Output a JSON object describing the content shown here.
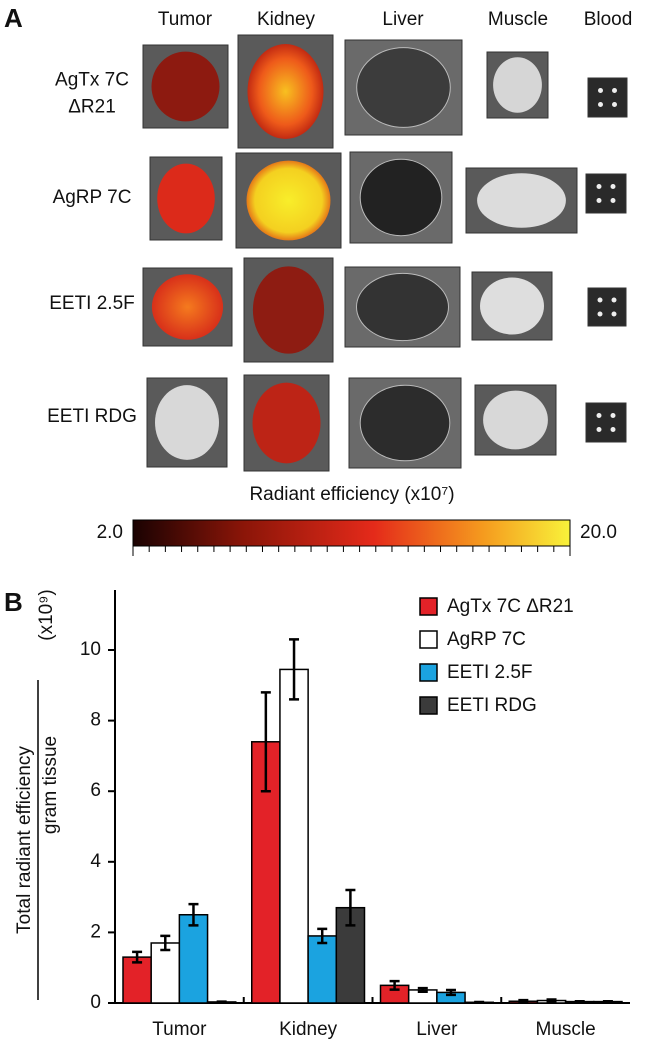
{
  "panel_a": {
    "label": "A",
    "columns": [
      "Tumor",
      "Kidney",
      "Liver",
      "Muscle",
      "Blood"
    ],
    "rows": [
      [
        "AgTx 7C",
        "ΔR21"
      ],
      [
        "AgRP 7C"
      ],
      [
        "EETI 2.5F"
      ],
      [
        "EETI RDG"
      ]
    ],
    "colorbar": {
      "label": "Radiant efficiency (x10⁷)",
      "clim": [
        2,
        20
      ],
      "ticks": [
        {
          "value": 2,
          "label": "2.0"
        },
        {
          "value": 20,
          "label": "20.0"
        }
      ]
    }
  },
  "chart_data": {
    "type": "bar",
    "panel_label": "B",
    "y_label": {
      "numerator": "Total radiant efficiency",
      "denominator": "gram tissue",
      "unit": "(x10⁹)"
    },
    "categories": [
      "Tumor",
      "Kidney",
      "Liver",
      "Muscle"
    ],
    "series": [
      {
        "name": "AgTx 7C ΔR21",
        "color": "#e32228",
        "values": [
          1.3,
          7.4,
          0.5,
          0.05
        ],
        "errors": [
          0.15,
          1.4,
          0.12,
          0.03
        ]
      },
      {
        "name": "AgRP 7C",
        "color": "#ffffff",
        "values": [
          1.7,
          9.45,
          0.37,
          0.07
        ],
        "errors": [
          0.2,
          0.85,
          0.05,
          0.03
        ]
      },
      {
        "name": "EETI 2.5F",
        "color": "#1ba3e0",
        "values": [
          2.5,
          1.9,
          0.3,
          0.04
        ],
        "errors": [
          0.3,
          0.2,
          0.07,
          0.01
        ]
      },
      {
        "name": "EETI RDG",
        "color": "#3b3b3b",
        "values": [
          0.03,
          2.7,
          0.02,
          0.04
        ],
        "errors": [
          0.01,
          0.5,
          0.01,
          0.01
        ]
      }
    ],
    "ylim": [
      0,
      11.7
    ],
    "yticks": [
      0,
      2,
      4,
      6,
      8,
      10
    ],
    "legend": "upper right"
  }
}
